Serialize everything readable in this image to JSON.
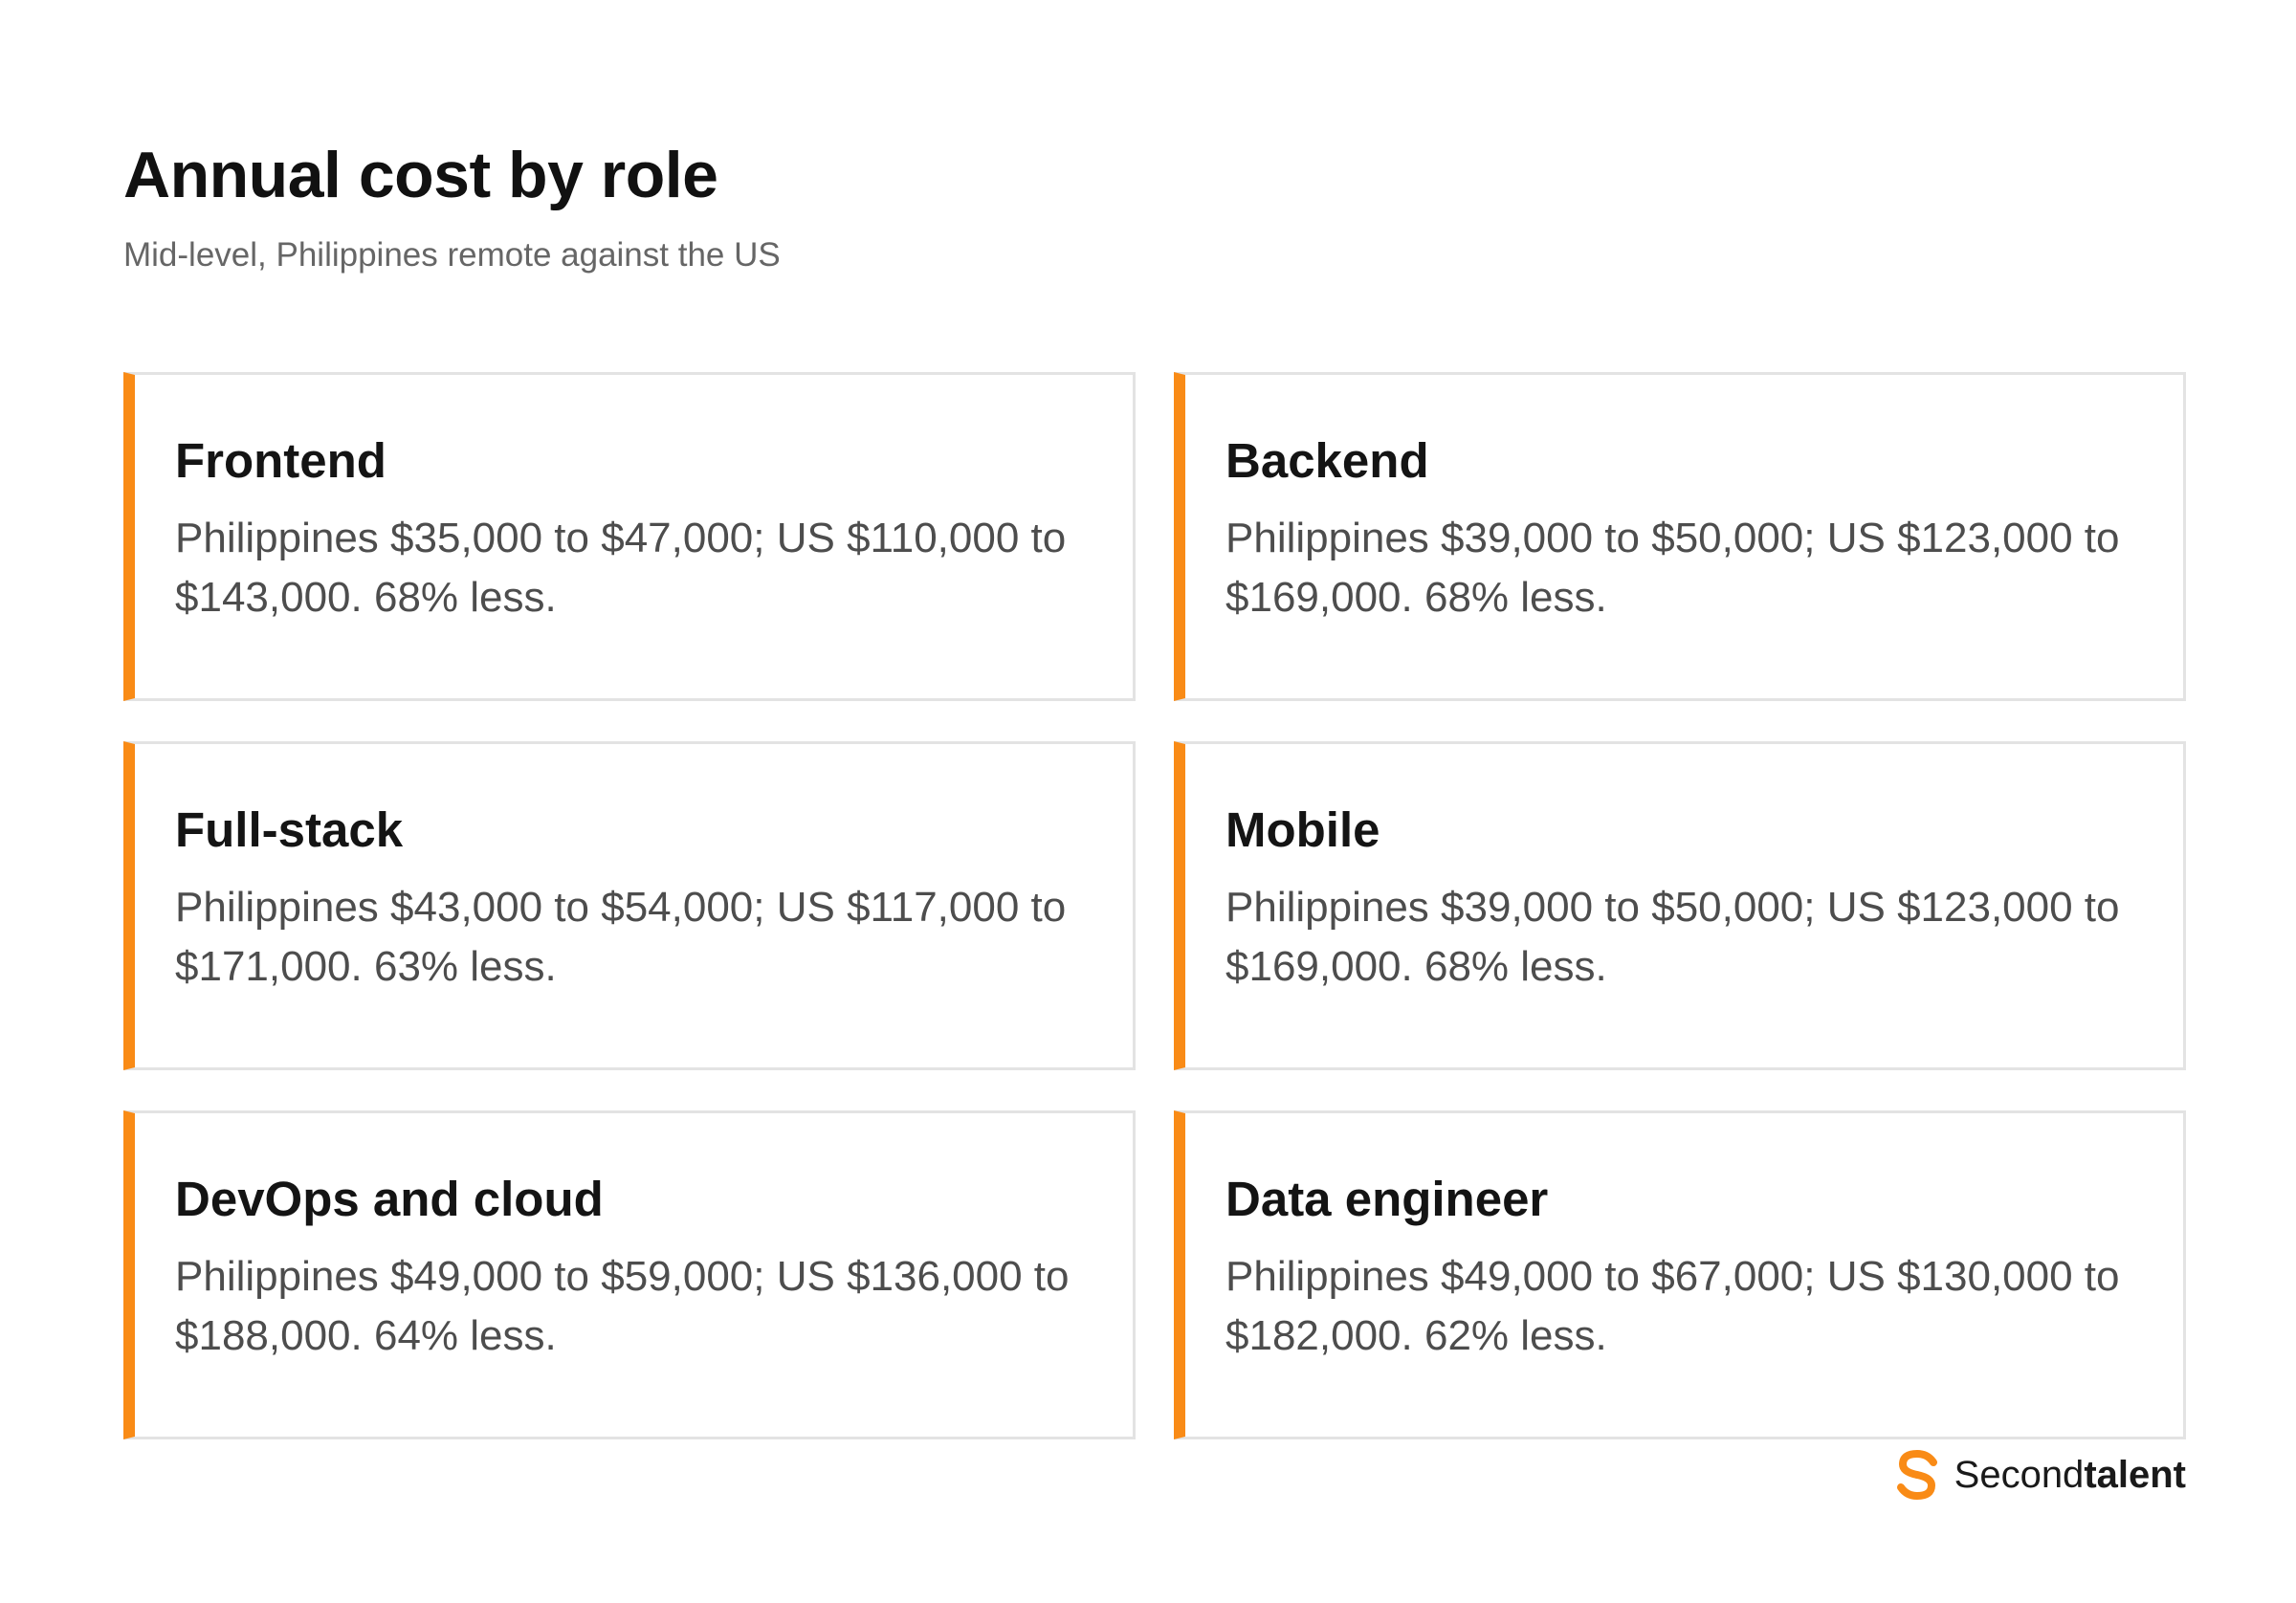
{
  "header": {
    "title": "Annual cost by role",
    "subtitle": "Mid-level, Philippines remote against the US"
  },
  "cards": [
    {
      "role": "Frontend",
      "text": "Philippines $35,000 to $47,000; US $110,000 to $143,000. 68% less."
    },
    {
      "role": "Backend",
      "text": "Philippines $39,000 to $50,000; US $123,000 to $169,000. 68% less."
    },
    {
      "role": "Full-stack",
      "text": "Philippines $43,000 to $54,000; US $117,000 to $171,000. 63% less."
    },
    {
      "role": "Mobile",
      "text": "Philippines $39,000 to $50,000; US $123,000 to $169,000. 68% less."
    },
    {
      "role": "DevOps and cloud",
      "text": "Philippines $49,000 to $59,000; US $136,000 to $188,000. 64% less."
    },
    {
      "role": "Data engineer",
      "text": "Philippines $49,000 to $67,000; US $130,000 to $182,000. 62% less."
    }
  ],
  "brand": {
    "name_light": "Second",
    "name_bold": "talent",
    "logo_icon": "secondtalent-logo-icon"
  },
  "colors": {
    "accent": "#f98b16",
    "card_border": "#e3e3e3",
    "title": "#111111",
    "body_text": "#4d4d4d",
    "subtitle": "#666666"
  }
}
